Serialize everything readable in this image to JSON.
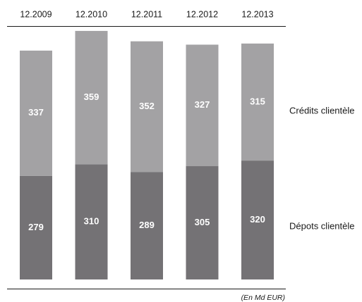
{
  "chart_data": {
    "type": "bar",
    "stacked": true,
    "categories": [
      "12.2009",
      "12.2010",
      "12.2011",
      "12.2012",
      "12.2013"
    ],
    "series": [
      {
        "name": "Dépots clientèle",
        "values": [
          279,
          310,
          289,
          305,
          320
        ],
        "color": "#747275"
      },
      {
        "name": "Crédits clientèle",
        "values": [
          337,
          359,
          352,
          327,
          315
        ],
        "color": "#a3a2a4"
      }
    ],
    "unit_note": "(En Md EUR)",
    "legend_position": "right",
    "grid": false
  }
}
